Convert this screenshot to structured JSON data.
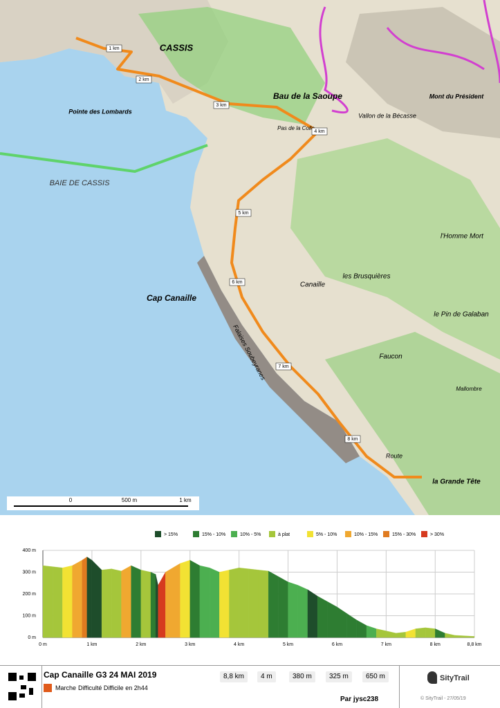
{
  "map": {
    "labels": [
      "CASSIS",
      "Pointe des Lombards",
      "BAIE DE CASSIS",
      "Cap Canaille",
      "Bau de la Saoupe",
      "Mont du Président",
      "Vallon de la Bécasse",
      "l'Homme Mort",
      "les Brusquières",
      "Canaille",
      "le Pin de Galaban",
      "Faucon",
      "Mallombre",
      "la Grande Tête",
      "Falaises Soubeyranes",
      "Route",
      "Pas de la Colle"
    ],
    "km_markers": [
      "1 km",
      "2 km",
      "3 km",
      "4 km",
      "5 km",
      "6 km",
      "7 km",
      "8 km"
    ],
    "scale": [
      "0",
      "500 m",
      "1 km"
    ]
  },
  "profile": {
    "legend": [
      {
        "name": "> 15%",
        "color": "#1e4d2b"
      },
      {
        "name": "15% - 10%",
        "color": "#2e7d32"
      },
      {
        "name": "10% - 5%",
        "color": "#4caf50"
      },
      {
        "name": "à plat",
        "color": "#a5c63b"
      },
      {
        "name": "5% - 10%",
        "color": "#f2e233"
      },
      {
        "name": "10% - 15%",
        "color": "#f0a830"
      },
      {
        "name": "15% - 30%",
        "color": "#e07b20"
      },
      {
        "name": "> 30%",
        "color": "#d63a1f"
      }
    ],
    "x": [
      0,
      0.2,
      0.4,
      0.6,
      0.8,
      0.9,
      1.0,
      1.2,
      1.4,
      1.6,
      1.8,
      2.0,
      2.2,
      2.3,
      2.35,
      2.5,
      2.8,
      3.0,
      3.2,
      3.4,
      3.6,
      3.8,
      4.0,
      4.2,
      4.4,
      4.6,
      4.8,
      5.0,
      5.2,
      5.4,
      5.6,
      5.8,
      6.0,
      6.2,
      6.4,
      6.6,
      6.8,
      7.0,
      7.2,
      7.4,
      7.6,
      7.8,
      8.0,
      8.2,
      8.4,
      8.8
    ],
    "values": [
      330,
      325,
      320,
      330,
      355,
      370,
      355,
      310,
      315,
      305,
      330,
      310,
      300,
      290,
      240,
      300,
      340,
      355,
      330,
      320,
      300,
      310,
      320,
      315,
      310,
      305,
      280,
      255,
      240,
      220,
      190,
      165,
      140,
      110,
      80,
      55,
      40,
      30,
      20,
      25,
      40,
      45,
      40,
      20,
      10,
      5
    ],
    "xlim": [
      0,
      8.8
    ],
    "ylim": [
      0,
      400
    ],
    "xticks": [
      {
        "value": 0,
        "label": "0 m"
      },
      {
        "value": 1,
        "label": "1 km"
      },
      {
        "value": 2,
        "label": "2 km"
      },
      {
        "value": 3,
        "label": "3 km"
      },
      {
        "value": 4,
        "label": "4 km"
      },
      {
        "value": 5,
        "label": "5 km"
      },
      {
        "value": 6,
        "label": "6 km"
      },
      {
        "value": 7,
        "label": "7 km"
      },
      {
        "value": 8,
        "label": "8 km"
      },
      {
        "value": 8.8,
        "label": "8,8 km"
      }
    ],
    "yticks": [
      {
        "value": 0,
        "label": "0 m"
      },
      {
        "value": 100,
        "label": "100 m"
      },
      {
        "value": 200,
        "label": "200 m"
      },
      {
        "value": 300,
        "label": "300 m"
      },
      {
        "value": 400,
        "label": "400 m"
      }
    ],
    "grid": true
  },
  "footer": {
    "title": "Cap Canaille G3 24 MAI 2019",
    "activity": "Marche",
    "difficulty": "Difficulté Difficile en 2h44",
    "stats": [
      "8,8 km",
      "4 m",
      "380 m",
      "325 m",
      "650 m"
    ],
    "author": "Par jysc238",
    "brand": "SityTrail",
    "copyright": "© SityTrail - 27/05/19"
  }
}
